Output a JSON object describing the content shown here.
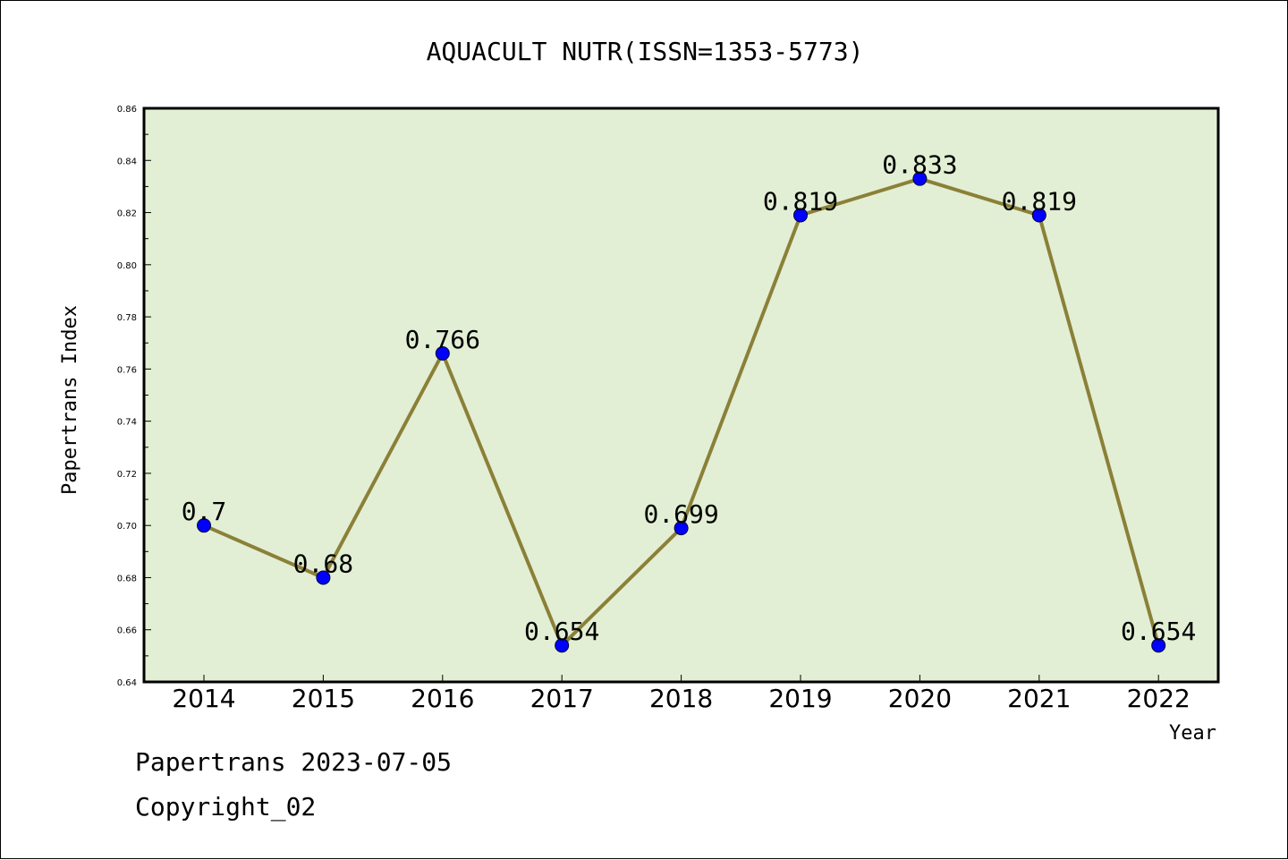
{
  "chart_data": {
    "type": "line",
    "title": "AQUACULT NUTR(ISSN=1353-5773)",
    "xlabel": "Year",
    "ylabel": "Papertrans Index",
    "categories": [
      "2014",
      "2015",
      "2016",
      "2017",
      "2018",
      "2019",
      "2020",
      "2021",
      "2022"
    ],
    "values": [
      0.7,
      0.68,
      0.766,
      0.654,
      0.699,
      0.819,
      0.833,
      0.819,
      0.654
    ],
    "data_labels": [
      "0.7",
      "0.68",
      "0.766",
      "0.654",
      "0.699",
      "0.819",
      "0.833",
      "0.819",
      "0.654"
    ],
    "ylim": [
      0.64,
      0.86
    ],
    "yticks": [
      "0.64",
      "0.66",
      "0.68",
      "0.70",
      "0.72",
      "0.74",
      "0.76",
      "0.78",
      "0.80",
      "0.82",
      "0.84",
      "0.86"
    ],
    "grid": false,
    "legend": "none",
    "colors": {
      "plot_background": "#e2efd4",
      "line": "#8b8038",
      "marker": "#0000ff"
    }
  },
  "footer": {
    "date_line": "Papertrans 2023-07-05",
    "copyright": "Copyright_02"
  }
}
